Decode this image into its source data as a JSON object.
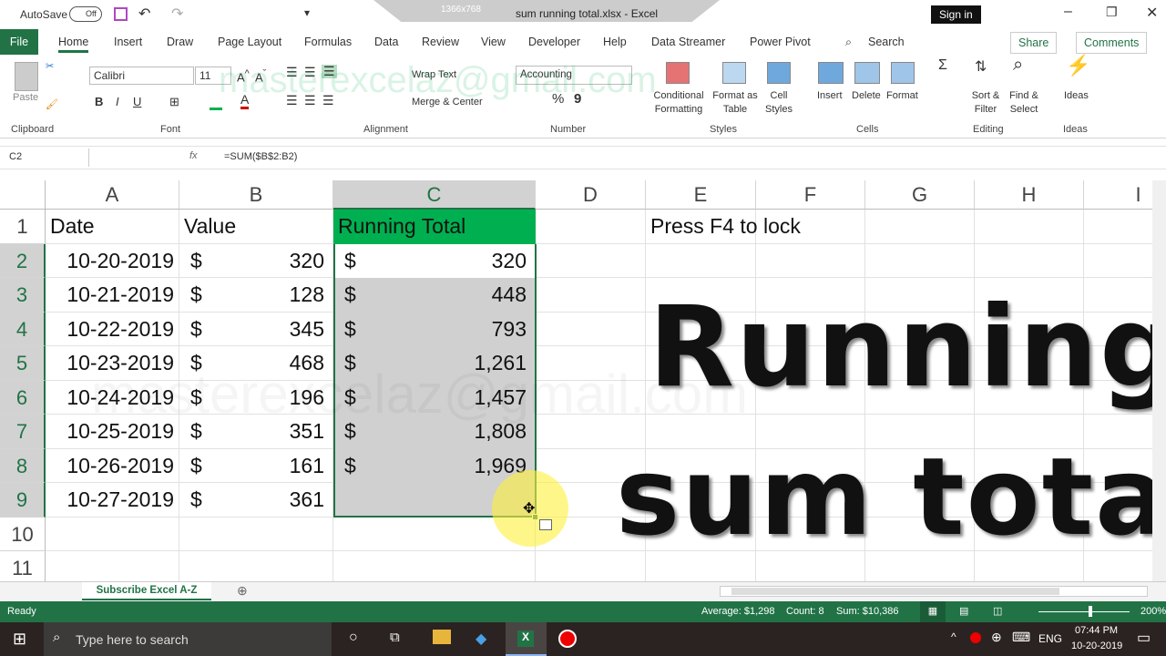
{
  "titlebar": {
    "autosave_label": "AutoSave",
    "autosave_state": "Off",
    "title": "sum running total.xlsx  -  Excel",
    "recording_size": "1366x768",
    "signin": "Sign in"
  },
  "tabs": [
    "File",
    "Home",
    "Insert",
    "Draw",
    "Page Layout",
    "Formulas",
    "Data",
    "Review",
    "View",
    "Developer",
    "Help",
    "Data Streamer",
    "Power Pivot"
  ],
  "active_tab": "Home",
  "search": "Search",
  "share": "Share",
  "comments": "Comments",
  "ribbon": {
    "clipboard": {
      "label": "Clipboard",
      "paste": "Paste"
    },
    "font": {
      "label": "Font",
      "name": "Calibri",
      "size": "11",
      "bold": "B",
      "italic": "I",
      "underline": "U"
    },
    "alignment": {
      "label": "Alignment",
      "wrap": "Wrap Text",
      "merge": "Merge & Center"
    },
    "number": {
      "label": "Number",
      "format": "Accounting",
      "percent": "%",
      "comma": "9"
    },
    "styles": {
      "label": "Styles",
      "conditional": "Conditional Formatting",
      "format_table": "Format as Table",
      "cell_styles": "Cell Styles"
    },
    "cells": {
      "label": "Cells",
      "insert": "Insert",
      "delete": "Delete",
      "format": "Format"
    },
    "editing": {
      "label": "Editing",
      "sort": "Sort & Filter",
      "find": "Find & Select"
    },
    "ideas": {
      "label": "Ideas",
      "button": "Ideas"
    }
  },
  "formula_bar": {
    "name_box": "C2",
    "fx": "fx",
    "formula": "=SUM($B$2:B2)"
  },
  "columns": [
    "A",
    "B",
    "C",
    "D",
    "E",
    "F",
    "G",
    "H",
    "I"
  ],
  "rows": [
    "1",
    "2",
    "3",
    "4",
    "5",
    "6",
    "7",
    "8",
    "9",
    "10",
    "11"
  ],
  "header_row": {
    "a": "Date",
    "b": "Value",
    "c": "Running Total",
    "e": "Press F4 to lock"
  },
  "data": [
    {
      "date": "10-20-2019",
      "value": "320",
      "total": "320"
    },
    {
      "date": "10-21-2019",
      "value": "128",
      "total": "448"
    },
    {
      "date": "10-22-2019",
      "value": "345",
      "total": "793"
    },
    {
      "date": "10-23-2019",
      "value": "468",
      "total": "1,261"
    },
    {
      "date": "10-24-2019",
      "value": "196",
      "total": "1,457"
    },
    {
      "date": "10-25-2019",
      "value": "351",
      "total": "1,808"
    },
    {
      "date": "10-26-2019",
      "value": "161",
      "total": "1,969"
    },
    {
      "date": "10-27-2019",
      "value": "361",
      "total": ""
    }
  ],
  "currency": "$",
  "overlay": {
    "line1": "Running",
    "line2": "sum total",
    "watermark": "masterexcelaz@gmail.com"
  },
  "sheet_tab": "Subscribe Excel A-Z",
  "status": {
    "ready": "Ready",
    "average": "Average: $1,298",
    "count": "Count: 8",
    "sum": "Sum: $10,386",
    "zoom": "200%"
  },
  "taskbar": {
    "search": "Type here to search",
    "lang": "ENG",
    "time": "07:44 PM",
    "date": "10-20-2019"
  },
  "colors": {
    "excel_green": "#217346",
    "header_fill": "#00b050",
    "selection": "#d0d0d0"
  }
}
